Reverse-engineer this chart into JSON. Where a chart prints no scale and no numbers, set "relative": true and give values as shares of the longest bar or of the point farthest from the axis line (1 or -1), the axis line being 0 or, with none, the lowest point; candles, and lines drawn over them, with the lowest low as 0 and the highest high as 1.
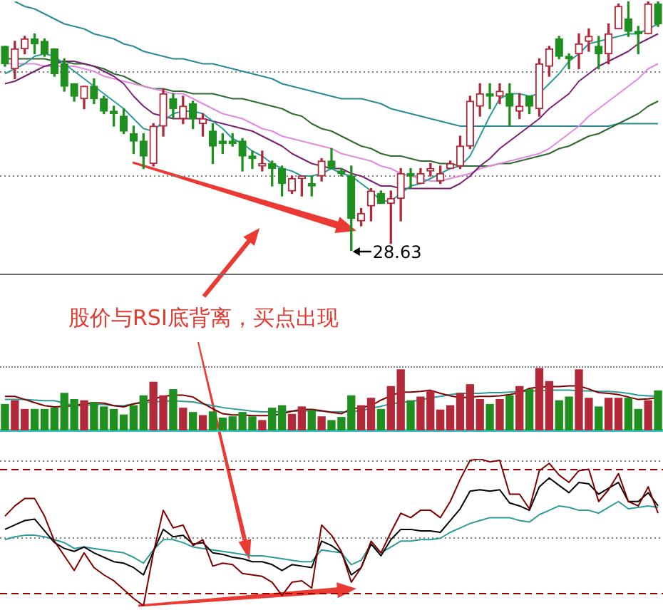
{
  "chart_data": [
    {
      "type": "candlestick",
      "relative": true,
      "categories": [
        null,
        null,
        null,
        null,
        null,
        null,
        null,
        null,
        null,
        null,
        null,
        null,
        null,
        null,
        null,
        null,
        null,
        null,
        null,
        null,
        null,
        null,
        null,
        null,
        null,
        null,
        null,
        null,
        null,
        null,
        null,
        null,
        null,
        null,
        null,
        null,
        null,
        null,
        null,
        null,
        null,
        null,
        null,
        null,
        null,
        null,
        null,
        null,
        null,
        null,
        null,
        null,
        null,
        null,
        null,
        null,
        null,
        null,
        null,
        null,
        null,
        null,
        null,
        null,
        null,
        null,
        null
      ],
      "ohlc": [
        [
          0.82,
          0.82,
          0.74,
          0.75
        ],
        [
          0.73,
          0.84,
          0.69,
          0.81
        ],
        [
          0.81,
          0.86,
          0.79,
          0.85
        ],
        [
          0.85,
          0.87,
          0.79,
          0.83
        ],
        [
          0.84,
          0.85,
          0.78,
          0.79
        ],
        [
          0.81,
          0.81,
          0.7,
          0.71
        ],
        [
          0.75,
          0.77,
          0.64,
          0.66
        ],
        [
          0.67,
          0.67,
          0.6,
          0.62
        ],
        [
          0.61,
          0.66,
          0.57,
          0.66
        ],
        [
          0.66,
          0.69,
          0.59,
          0.61
        ],
        [
          0.61,
          0.62,
          0.55,
          0.56
        ],
        [
          0.56,
          0.58,
          0.5,
          0.55
        ],
        [
          0.54,
          0.57,
          0.47,
          0.48
        ],
        [
          0.47,
          0.5,
          0.39,
          0.44
        ],
        [
          0.44,
          0.47,
          0.33,
          0.38
        ],
        [
          0.35,
          0.51,
          0.34,
          0.5
        ],
        [
          0.5,
          0.65,
          0.46,
          0.63
        ],
        [
          0.61,
          0.63,
          0.53,
          0.57
        ],
        [
          0.53,
          0.62,
          0.51,
          0.58
        ],
        [
          0.59,
          0.6,
          0.49,
          0.53
        ],
        [
          0.51,
          0.55,
          0.46,
          0.53
        ],
        [
          0.48,
          0.51,
          0.35,
          0.42
        ],
        [
          0.44,
          0.47,
          0.39,
          0.43
        ],
        [
          0.44,
          0.47,
          0.42,
          0.43
        ],
        [
          0.44,
          0.45,
          0.32,
          0.38
        ],
        [
          0.38,
          0.4,
          0.33,
          0.37
        ],
        [
          0.34,
          0.4,
          0.32,
          0.35
        ],
        [
          0.35,
          0.36,
          0.26,
          0.33
        ],
        [
          0.33,
          0.34,
          0.22,
          0.27
        ],
        [
          0.24,
          0.3,
          0.23,
          0.29
        ],
        [
          0.29,
          0.3,
          0.22,
          0.3
        ],
        [
          0.27,
          0.3,
          0.22,
          0.26
        ],
        [
          0.3,
          0.37,
          0.28,
          0.36
        ],
        [
          0.36,
          0.41,
          0.33,
          0.33
        ],
        [
          0.32,
          0.33,
          0.3,
          0.31
        ],
        [
          0.3,
          0.34,
          0.0,
          0.13
        ],
        [
          0.12,
          0.17,
          0.1,
          0.15
        ],
        [
          0.18,
          0.25,
          0.12,
          0.24
        ],
        [
          0.23,
          0.24,
          0.19,
          0.19
        ],
        [
          0.19,
          0.24,
          0.03,
          0.21
        ],
        [
          0.21,
          0.33,
          0.12,
          0.31
        ],
        [
          0.31,
          0.33,
          0.25,
          0.3
        ],
        [
          0.27,
          0.33,
          0.27,
          0.31
        ],
        [
          0.32,
          0.35,
          0.3,
          0.33
        ],
        [
          0.28,
          0.34,
          0.27,
          0.31
        ],
        [
          0.33,
          0.36,
          0.33,
          0.35
        ],
        [
          0.34,
          0.46,
          0.33,
          0.42
        ],
        [
          0.42,
          0.62,
          0.41,
          0.6
        ],
        [
          0.58,
          0.67,
          0.54,
          0.63
        ],
        [
          0.63,
          0.67,
          0.57,
          0.62
        ],
        [
          0.62,
          0.67,
          0.59,
          0.64
        ],
        [
          0.63,
          0.67,
          0.5,
          0.58
        ],
        [
          0.56,
          0.63,
          0.53,
          0.58
        ],
        [
          0.62,
          0.62,
          0.55,
          0.58
        ],
        [
          0.57,
          0.77,
          0.54,
          0.75
        ],
        [
          0.74,
          0.82,
          0.7,
          0.81
        ],
        [
          0.85,
          0.86,
          0.77,
          0.78
        ],
        [
          0.78,
          0.79,
          0.73,
          0.77
        ],
        [
          0.79,
          0.87,
          0.73,
          0.83
        ],
        [
          0.84,
          0.89,
          0.8,
          0.86
        ],
        [
          0.82,
          0.86,
          0.73,
          0.79
        ],
        [
          0.79,
          0.91,
          0.75,
          0.87
        ],
        [
          0.89,
          0.99,
          0.89,
          0.98
        ],
        [
          0.93,
          1.0,
          0.86,
          0.88
        ],
        [
          0.88,
          0.9,
          0.79,
          0.87
        ],
        [
          0.87,
          1.0,
          0.87,
          0.99
        ],
        [
          0.99,
          1.0,
          0.9,
          0.91
        ]
      ],
      "colors": [
        "#1f8f1f",
        "#b22a3a",
        "#b22a3a",
        "#1f8f1f",
        "#1f8f1f",
        "#1f8f1f",
        "#1f8f1f",
        "#1f8f1f",
        "#b22a3a",
        "#1f8f1f",
        "#1f8f1f",
        "#1f8f1f",
        "#1f8f1f",
        "#1f8f1f",
        "#1f8f1f",
        "#b22a3a",
        "#b22a3a",
        "#1f8f1f",
        "#b22a3a",
        "#1f8f1f",
        "#b22a3a",
        "#1f8f1f",
        "#1f8f1f",
        "#1f8f1f",
        "#1f8f1f",
        "#1f8f1f",
        "#b22a3a",
        "#1f8f1f",
        "#1f8f1f",
        "#b22a3a",
        "#b22a3a",
        "#1f8f1f",
        "#b22a3a",
        "#1f8f1f",
        "#1f8f1f",
        "#1f8f1f",
        "#b22a3a",
        "#b22a3a",
        "#1f8f1f",
        "#b22a3a",
        "#b22a3a",
        "#1f8f1f",
        "#b22a3a",
        "#b22a3a",
        "#b22a3a",
        "#b22a3a",
        "#b22a3a",
        "#b22a3a",
        "#b22a3a",
        "#1f8f1f",
        "#b22a3a",
        "#1f8f1f",
        "#b22a3a",
        "#1f8f1f",
        "#b22a3a",
        "#b22a3a",
        "#1f8f1f",
        "#1f8f1f",
        "#b22a3a",
        "#b22a3a",
        "#1f8f1f",
        "#b22a3a",
        "#b22a3a",
        "#1f8f1f",
        "#1f8f1f",
        "#b22a3a",
        "#1f8f1f"
      ],
      "series": [
        {
          "type": "line",
          "color": "#2f9a9a",
          "values": [
            0.71,
            0.73,
            0.75,
            0.78,
            0.79,
            0.78,
            0.75,
            0.72,
            0.69,
            0.66,
            0.63,
            0.6,
            0.57,
            0.53,
            0.49,
            0.48,
            0.52,
            0.55,
            0.56,
            0.56,
            0.55,
            0.52,
            0.49,
            0.45,
            0.43,
            0.4,
            0.38,
            0.35,
            0.33,
            0.32,
            0.3,
            0.3,
            0.31,
            0.33,
            0.31,
            0.3,
            0.27,
            0.24,
            0.2,
            0.2,
            0.23,
            0.26,
            0.27,
            0.29,
            0.31,
            0.33,
            0.34,
            0.38,
            0.46,
            0.54,
            0.61,
            0.63,
            0.63,
            0.62,
            0.63,
            0.67,
            0.71,
            0.76,
            0.79,
            0.83,
            0.84,
            0.85,
            0.86,
            0.87,
            0.87,
            0.89,
            0.91
          ]
        },
        {
          "type": "line",
          "color": "#7b2072",
          "values": [
            0.67,
            0.68,
            0.7,
            0.72,
            0.74,
            0.75,
            0.76,
            0.76,
            0.75,
            0.74,
            0.72,
            0.7,
            0.67,
            0.62,
            0.58,
            0.55,
            0.54,
            0.53,
            0.53,
            0.53,
            0.53,
            0.52,
            0.51,
            0.5,
            0.49,
            0.48,
            0.46,
            0.44,
            0.42,
            0.39,
            0.37,
            0.35,
            0.34,
            0.33,
            0.33,
            0.31,
            0.3,
            0.28,
            0.26,
            0.26,
            0.25,
            0.25,
            0.25,
            0.25,
            0.25,
            0.25,
            0.27,
            0.3,
            0.34,
            0.37,
            0.41,
            0.44,
            0.47,
            0.5,
            0.53,
            0.57,
            0.6,
            0.63,
            0.68,
            0.71,
            0.74,
            0.76,
            0.78,
            0.8,
            0.83,
            0.85,
            0.87
          ]
        },
        {
          "type": "line",
          "color": "#e28ae2",
          "values": [
            0.75,
            0.75,
            0.75,
            0.75,
            0.74,
            0.74,
            0.74,
            0.74,
            0.73,
            0.72,
            0.7,
            0.69,
            0.68,
            0.67,
            0.66,
            0.65,
            0.64,
            0.63,
            0.63,
            0.61,
            0.59,
            0.57,
            0.55,
            0.54,
            0.53,
            0.51,
            0.49,
            0.48,
            0.46,
            0.45,
            0.44,
            0.43,
            0.42,
            0.41,
            0.39,
            0.38,
            0.37,
            0.36,
            0.34,
            0.33,
            0.31,
            0.3,
            0.29,
            0.28,
            0.28,
            0.29,
            0.3,
            0.31,
            0.33,
            0.34,
            0.35,
            0.36,
            0.37,
            0.38,
            0.39,
            0.41,
            0.44,
            0.47,
            0.5,
            0.54,
            0.57,
            0.6,
            0.63,
            0.66,
            0.69,
            0.73,
            0.75
          ]
        },
        {
          "type": "line",
          "color": "#2e6b2e",
          "values": [
            0.77,
            0.77,
            0.77,
            0.77,
            0.77,
            0.76,
            0.76,
            0.75,
            0.75,
            0.74,
            0.73,
            0.71,
            0.7,
            0.68,
            0.66,
            0.65,
            0.65,
            0.64,
            0.64,
            0.63,
            0.63,
            0.63,
            0.62,
            0.61,
            0.61,
            0.6,
            0.59,
            0.58,
            0.57,
            0.55,
            0.54,
            0.51,
            0.49,
            0.48,
            0.46,
            0.44,
            0.42,
            0.41,
            0.39,
            0.38,
            0.38,
            0.37,
            0.36,
            0.36,
            0.35,
            0.35,
            0.34,
            0.34,
            0.34,
            0.34,
            0.35,
            0.35,
            0.36,
            0.37,
            0.38,
            0.39,
            0.41,
            0.42,
            0.44,
            0.46,
            0.47,
            0.49,
            0.51,
            0.53,
            0.55,
            0.58,
            0.6
          ]
        },
        {
          "type": "line",
          "color": "#2a8a96",
          "values": [
            null,
            1.0,
            0.98,
            0.97,
            0.95,
            0.93,
            0.91,
            0.9,
            0.89,
            0.87,
            0.86,
            0.85,
            0.83,
            0.82,
            0.8,
            0.79,
            0.78,
            0.77,
            0.77,
            0.76,
            0.75,
            0.75,
            0.74,
            0.73,
            0.72,
            0.71,
            0.7,
            0.69,
            0.67,
            0.66,
            0.65,
            0.64,
            0.63,
            0.62,
            0.61,
            0.61,
            0.61,
            0.6,
            0.59,
            0.57,
            0.56,
            0.55,
            0.54,
            0.53,
            0.52,
            0.51,
            0.5,
            0.5,
            0.5,
            0.5,
            0.5,
            0.5,
            0.5,
            0.5,
            0.5,
            0.5,
            0.5,
            0.5,
            0.5,
            0.5,
            0.5,
            0.5,
            0.51,
            0.51,
            0.51,
            0.51,
            0.51
          ]
        }
      ],
      "ref_lines": [
        {
          "axis": "y",
          "value": 0.72,
          "color": "#808080",
          "line_style": "dotted"
        },
        {
          "axis": "y",
          "value": 0.3,
          "color": "#808080",
          "line_style": "dotted"
        }
      ],
      "annotations": [
        "28.63",
        "股价与RSI底背离，买点出现"
      ]
    },
    {
      "type": "bar",
      "relative": true,
      "categories": [
        null,
        null,
        null,
        null,
        null,
        null,
        null,
        null,
        null,
        null,
        null,
        null,
        null,
        null,
        null,
        null,
        null,
        null,
        null,
        null,
        null,
        null,
        null,
        null,
        null,
        null,
        null,
        null,
        null,
        null,
        null,
        null,
        null,
        null,
        null,
        null,
        null,
        null,
        null,
        null,
        null,
        null,
        null,
        null,
        null,
        null,
        null,
        null,
        null,
        null,
        null,
        null,
        null,
        null,
        null,
        null,
        null,
        null,
        null,
        null,
        null,
        null,
        null,
        null,
        null,
        null,
        null
      ],
      "series": [
        {
          "colors": [
            "#1f8f1f",
            "#b22a3a",
            "#b22a3a",
            "#1f8f1f",
            "#1f8f1f",
            "#1f8f1f",
            "#1f8f1f",
            "#1f8f1f",
            "#b22a3a",
            "#1f8f1f",
            "#1f8f1f",
            "#1f8f1f",
            "#1f8f1f",
            "#1f8f1f",
            "#1f8f1f",
            "#b22a3a",
            "#b22a3a",
            "#1f8f1f",
            "#b22a3a",
            "#1f8f1f",
            "#b22a3a",
            "#1f8f1f",
            "#1f8f1f",
            "#1f8f1f",
            "#1f8f1f",
            "#1f8f1f",
            "#b22a3a",
            "#1f8f1f",
            "#1f8f1f",
            "#b22a3a",
            "#b22a3a",
            "#1f8f1f",
            "#b22a3a",
            "#1f8f1f",
            "#1f8f1f",
            "#1f8f1f",
            "#b22a3a",
            "#b22a3a",
            "#1f8f1f",
            "#b22a3a",
            "#b22a3a",
            "#1f8f1f",
            "#b22a3a",
            "#b22a3a",
            "#b22a3a",
            "#b22a3a",
            "#b22a3a",
            "#b22a3a",
            "#b22a3a",
            "#1f8f1f",
            "#b22a3a",
            "#1f8f1f",
            "#b22a3a",
            "#1f8f1f",
            "#b22a3a",
            "#b22a3a",
            "#1f8f1f",
            "#1f8f1f",
            "#b22a3a",
            "#b22a3a",
            "#1f8f1f",
            "#b22a3a",
            "#b22a3a",
            "#1f8f1f",
            "#1f8f1f",
            "#b22a3a",
            "#1f8f1f"
          ],
          "values": [
            0.42,
            0.48,
            0.34,
            0.34,
            0.34,
            0.36,
            0.6,
            0.5,
            0.48,
            0.45,
            0.38,
            0.34,
            0.25,
            0.4,
            0.56,
            0.78,
            0.56,
            0.66,
            0.36,
            0.29,
            0.24,
            0.3,
            0.2,
            0.22,
            0.29,
            0.22,
            0.16,
            0.36,
            0.4,
            0.26,
            0.38,
            0.32,
            0.22,
            0.16,
            0.21,
            0.56,
            0.4,
            0.52,
            0.34,
            0.71,
            0.98,
            0.48,
            0.54,
            0.64,
            0.33,
            0.4,
            0.6,
            0.74,
            0.5,
            0.42,
            0.5,
            0.56,
            0.71,
            0.66,
            1.0,
            0.79,
            0.48,
            0.54,
            0.98,
            0.52,
            0.38,
            0.52,
            0.52,
            0.52,
            0.34,
            0.48,
            0.64
          ]
        },
        {
          "type": "line",
          "color": "#800000",
          "values": [
            0.55,
            0.55,
            0.5,
            0.45,
            0.4,
            0.38,
            0.39,
            0.4,
            0.43,
            0.45,
            0.44,
            0.4,
            0.38,
            0.43,
            0.46,
            0.51,
            0.55,
            0.57,
            0.57,
            0.54,
            0.44,
            0.35,
            0.27,
            0.25,
            0.25,
            0.24,
            0.24,
            0.24,
            0.27,
            0.31,
            0.34,
            0.34,
            0.32,
            0.29,
            0.27,
            0.35,
            0.37,
            0.4,
            0.49,
            0.56,
            0.62,
            0.62,
            0.63,
            0.65,
            0.6,
            0.56,
            0.53,
            0.54,
            0.55,
            0.55,
            0.56,
            0.58,
            0.61,
            0.68,
            0.7,
            0.71,
            0.71,
            0.72,
            0.72,
            0.67,
            0.61,
            0.6,
            0.58,
            0.54,
            0.5,
            0.51,
            0.53
          ]
        },
        {
          "type": "line",
          "color": "#2f9a9a",
          "values": [
            0.5,
            0.5,
            0.5,
            0.49,
            0.48,
            0.48,
            0.44,
            0.4,
            0.4,
            0.42,
            0.42,
            0.4,
            0.4,
            0.43,
            0.45,
            0.46,
            0.47,
            0.48,
            0.47,
            0.46,
            0.43,
            0.4,
            0.37,
            0.35,
            0.33,
            0.31,
            0.3,
            0.3,
            0.3,
            0.31,
            0.31,
            0.32,
            0.31,
            0.3,
            0.3,
            0.3,
            0.32,
            0.36,
            0.39,
            0.43,
            0.45,
            0.47,
            0.49,
            0.53,
            0.55,
            0.58,
            0.6,
            0.6,
            0.6,
            0.61,
            0.61,
            0.62,
            0.63,
            0.64,
            0.64,
            0.65,
            0.65,
            0.65,
            0.64,
            0.64,
            0.63,
            0.63,
            0.62,
            0.6,
            0.57,
            0.56,
            0.55
          ]
        }
      ]
    },
    {
      "type": "line",
      "relative": true,
      "categories": [
        null,
        null,
        null,
        null,
        null,
        null,
        null,
        null,
        null,
        null,
        null,
        null,
        null,
        null,
        null,
        null,
        null,
        null,
        null,
        null,
        null,
        null,
        null,
        null,
        null,
        null,
        null,
        null,
        null,
        null,
        null,
        null,
        null,
        null,
        null,
        null,
        null,
        null,
        null,
        null,
        null,
        null,
        null,
        null,
        null,
        null,
        null,
        null,
        null,
        null,
        null,
        null,
        null,
        null,
        null,
        null,
        null,
        null,
        null,
        null,
        null,
        null,
        null,
        null,
        null,
        null,
        null
      ],
      "series": [
        {
          "color": "#7f0000",
          "values": [
            0.61,
            0.68,
            0.73,
            0.73,
            0.61,
            0.44,
            0.34,
            0.24,
            0.36,
            0.26,
            0.21,
            0.17,
            0.11,
            0.05,
            0.0,
            0.36,
            0.65,
            0.53,
            0.55,
            0.41,
            0.45,
            0.27,
            0.29,
            0.28,
            0.22,
            0.21,
            0.2,
            0.16,
            0.07,
            0.16,
            0.17,
            0.12,
            0.55,
            0.48,
            0.37,
            0.16,
            0.26,
            0.44,
            0.36,
            0.5,
            0.63,
            0.6,
            0.65,
            0.65,
            0.6,
            0.71,
            0.86,
            0.99,
            1.0,
            0.98,
            0.99,
            0.76,
            0.76,
            0.66,
            0.92,
            0.97,
            0.89,
            0.84,
            0.92,
            0.93,
            0.71,
            0.79,
            0.9,
            0.71,
            0.68,
            0.81,
            0.63
          ]
        },
        {
          "color": "#000000",
          "values": [
            0.52,
            0.55,
            0.58,
            0.59,
            0.51,
            0.43,
            0.39,
            0.37,
            0.4,
            0.36,
            0.33,
            0.3,
            0.29,
            0.26,
            0.21,
            0.37,
            0.52,
            0.47,
            0.48,
            0.42,
            0.43,
            0.36,
            0.35,
            0.33,
            0.32,
            0.3,
            0.3,
            0.28,
            0.24,
            0.28,
            0.27,
            0.26,
            0.44,
            0.41,
            0.36,
            0.21,
            0.26,
            0.42,
            0.34,
            0.45,
            0.52,
            0.52,
            0.51,
            0.51,
            0.5,
            0.58,
            0.66,
            0.78,
            0.79,
            0.78,
            0.79,
            0.7,
            0.68,
            0.65,
            0.81,
            0.87,
            0.82,
            0.77,
            0.84,
            0.83,
            0.76,
            0.8,
            0.84,
            0.71,
            0.71,
            0.77,
            0.68
          ]
        },
        {
          "color": "#2f9a9a",
          "values": [
            0.45,
            0.47,
            0.48,
            0.48,
            0.47,
            0.45,
            0.43,
            0.39,
            0.4,
            0.39,
            0.38,
            0.37,
            0.36,
            0.33,
            0.29,
            0.38,
            0.45,
            0.45,
            0.43,
            0.4,
            0.39,
            0.38,
            0.37,
            0.36,
            0.35,
            0.34,
            0.34,
            0.33,
            0.32,
            0.31,
            0.3,
            0.3,
            0.38,
            0.37,
            0.36,
            0.28,
            0.31,
            0.42,
            0.36,
            0.4,
            0.44,
            0.44,
            0.45,
            0.45,
            0.46,
            0.5,
            0.53,
            0.56,
            0.58,
            0.6,
            0.6,
            0.6,
            0.58,
            0.57,
            0.62,
            0.65,
            0.68,
            0.67,
            0.65,
            0.65,
            0.63,
            0.67,
            0.71,
            0.66,
            0.67,
            0.68,
            0.67
          ]
        }
      ],
      "ref_lines": [
        {
          "axis": "y",
          "value": 0.99,
          "color": "#808080",
          "line_style": "dotted"
        },
        {
          "axis": "y",
          "value": 0.93,
          "color": "#990000",
          "line_style": "dashed"
        },
        {
          "axis": "y",
          "value": 0.47,
          "color": "#808080",
          "line_style": "dotted"
        },
        {
          "axis": "y",
          "value": 0.09,
          "color": "#990000",
          "line_style": "dashed"
        }
      ]
    }
  ]
}
